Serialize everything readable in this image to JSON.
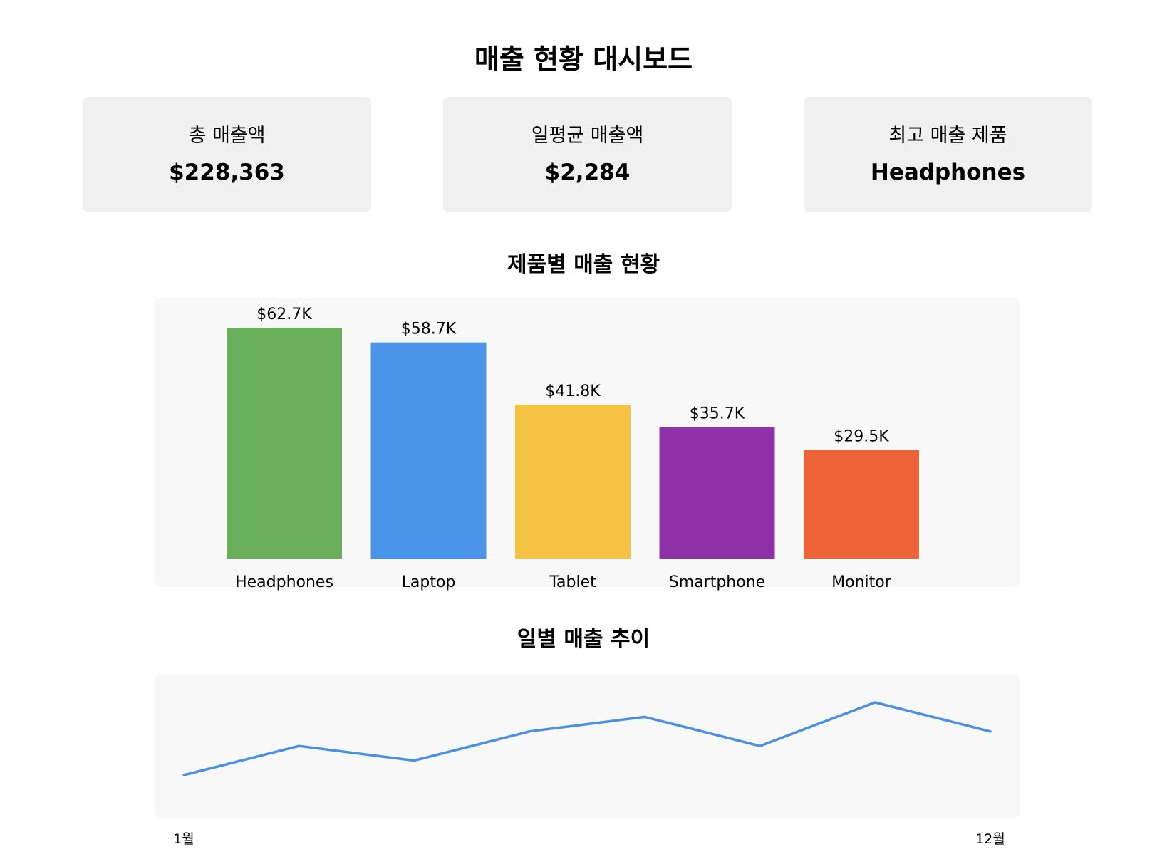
{
  "page_title": "매출 현황 대시보드",
  "cards": [
    {
      "label": "총 매출액",
      "value": "$228,363"
    },
    {
      "label": "일평균 매출액",
      "value": "$2,284"
    },
    {
      "label": "최고 매출 제품",
      "value": "Headphones"
    }
  ],
  "product_section_title": "제품별 매출 현황",
  "trend_section_title": "일별 매출 추이",
  "chart_data": [
    {
      "type": "bar",
      "categories": [
        "Headphones",
        "Laptop",
        "Tablet",
        "Smartphone",
        "Monitor"
      ],
      "values": [
        62.7,
        58.7,
        41.8,
        35.7,
        29.5
      ],
      "value_labels": [
        "$62.7K",
        "$58.7K",
        "$41.8K",
        "$35.7K",
        "$29.5K"
      ],
      "colors": [
        "#6aae5c",
        "#4a95e9",
        "#f5c244",
        "#8e30a8",
        "#ec6438"
      ],
      "title": "제품별 매출 현황",
      "ylim": [
        0,
        62.7
      ]
    },
    {
      "type": "line",
      "x_tick_labels": [
        "1월",
        "12월"
      ],
      "values": [
        1.0,
        3.0,
        2.0,
        4.0,
        5.0,
        3.0,
        6.0,
        4.0
      ],
      "color": "#4a90e2",
      "title": "일별 매출 추이",
      "ylim": [
        1.0,
        6.0
      ],
      "grid": false
    }
  ]
}
